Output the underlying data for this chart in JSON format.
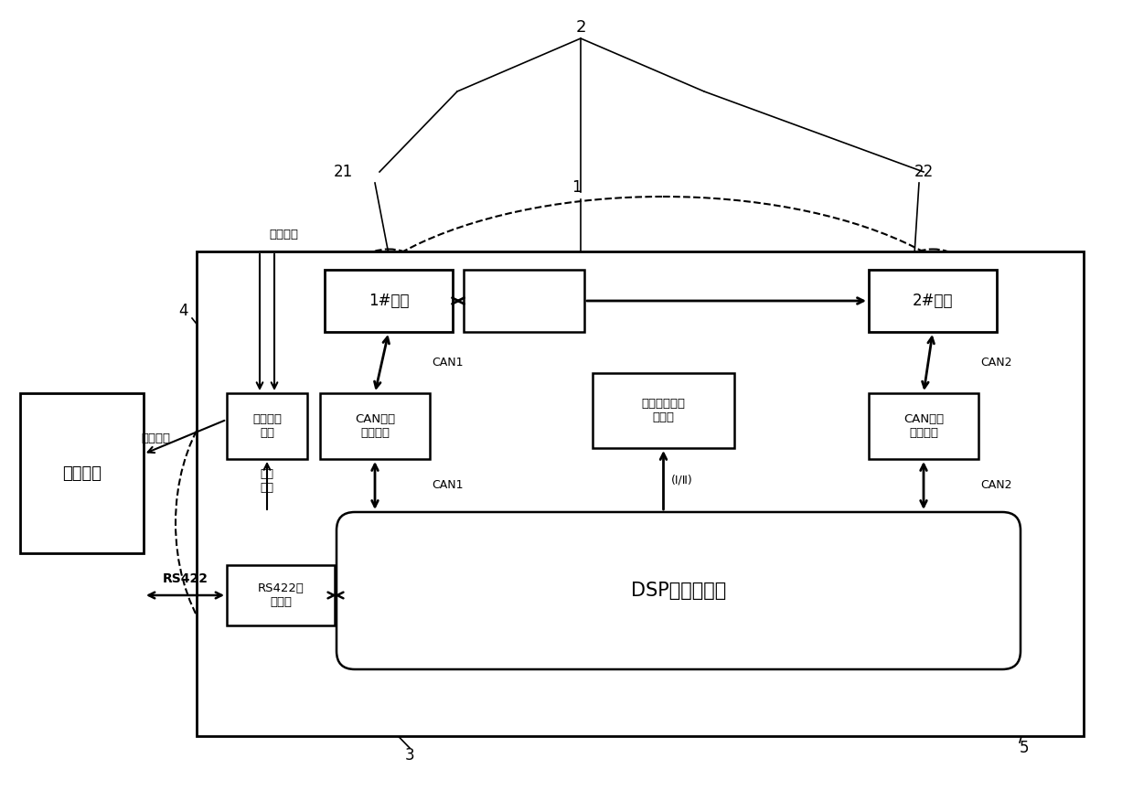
{
  "bg_color": "#ffffff",
  "fig_width": 12.39,
  "fig_height": 8.76,
  "labels": {
    "missile1": "1#导弹",
    "missile2": "2#导弹",
    "can_circuit1": "CAN总线\n收发电路",
    "can_circuit2": "CAN总线\n收发电路",
    "power_circuit": "导弹加电、发\n射电路",
    "video_circuit": "视频选通\n电路",
    "rs422_circuit": "RS422收\n发电路",
    "dsp_module": "DSP处理器模块",
    "fire_control": "火控设备",
    "video_signal1": "视频信号",
    "video_signal2": "视频信号",
    "rs422_label": "RS422",
    "select_ctrl": "选通\n控制",
    "io_label": "(Ⅰ/Ⅱ)",
    "can1": "CAN1",
    "can2": "CAN2"
  },
  "numbers": {
    "n1": "1",
    "n2": "2",
    "n21": "21",
    "n22": "22",
    "n3": "3",
    "n4": "4",
    "n5": "5"
  }
}
